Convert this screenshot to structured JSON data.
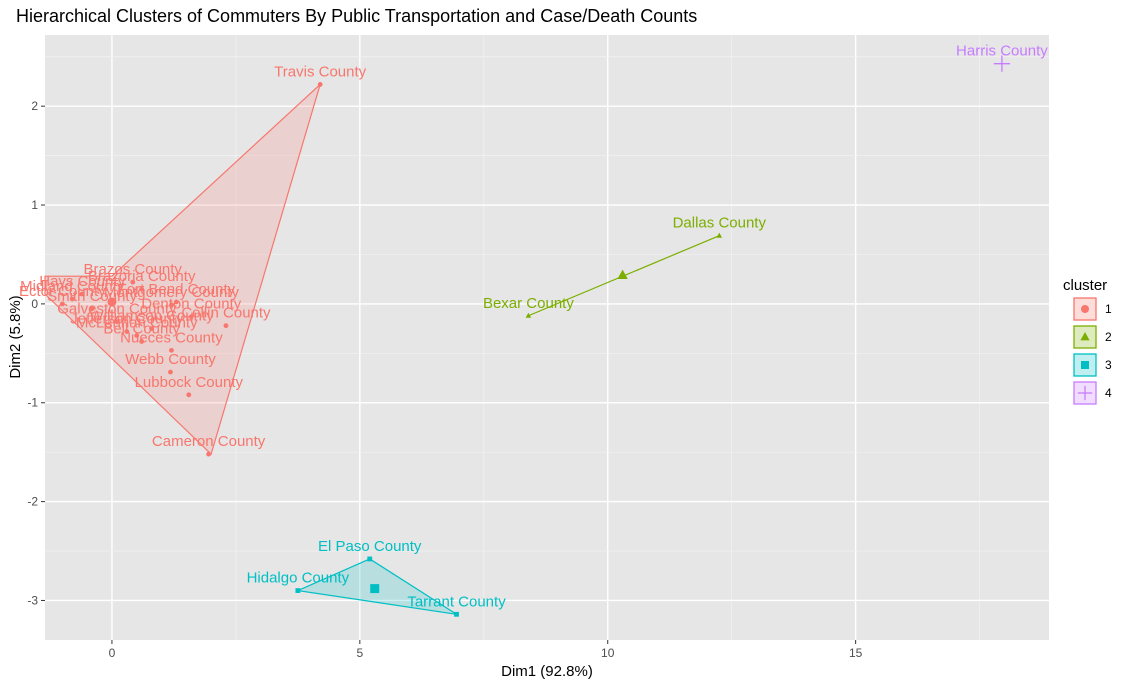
{
  "chart_data": {
    "type": "scatter",
    "title": "Hierarchical Clusters of Commuters By Public Transportation and Case/Death Counts",
    "xlabel": "Dim1 (92.8%)",
    "ylabel": "Dim2 (5.8%)",
    "xlim": [
      -1.35,
      18.9
    ],
    "ylim": [
      -3.4,
      2.72
    ],
    "xticks": [
      0,
      5,
      10,
      15
    ],
    "yticks": [
      -3,
      -2,
      -1,
      0,
      1,
      2
    ],
    "grid": true,
    "legend": {
      "title": "cluster",
      "position": "right",
      "entries": [
        "1",
        "2",
        "3",
        "4"
      ]
    },
    "colors": {
      "1": "#F8766D",
      "2": "#7CAE00",
      "3": "#00BFC4",
      "4": "#C77CFF"
    },
    "clusters": [
      {
        "name": "1",
        "color": "#F8766D",
        "shape": "circle",
        "centroid": [
          0,
          0.02
        ],
        "hull": [
          [
            4.2,
            2.22
          ],
          [
            2.0,
            -1.52
          ],
          [
            -1.35,
            0.1
          ],
          [
            -1.35,
            0.28
          ],
          [
            0,
            0.28
          ]
        ],
        "points": [
          {
            "label": "Travis County",
            "x": 4.2,
            "y": 2.22
          },
          {
            "label": "Cameron County",
            "x": 1.95,
            "y": -1.52
          },
          {
            "label": "Lubbock County",
            "x": 1.55,
            "y": -0.92
          },
          {
            "label": "Webb County",
            "x": 1.18,
            "y": -0.69
          },
          {
            "label": "Brazos County",
            "x": 0.42,
            "y": 0.22
          },
          {
            "label": "Fort Bend County",
            "x": 1.3,
            "y": 0.02
          },
          {
            "label": "Montgomery County",
            "x": 1.2,
            "y": -0.01
          },
          {
            "label": "Collin County",
            "x": 2.3,
            "y": -0.22
          },
          {
            "label": "Denton County",
            "x": 1.6,
            "y": -0.13
          },
          {
            "label": "McLennan County",
            "x": 0.5,
            "y": -0.32
          },
          {
            "label": "Nueces County",
            "x": 1.2,
            "y": -0.47
          },
          {
            "label": "Galveston County",
            "x": 0.1,
            "y": -0.18
          },
          {
            "label": "Jefferson County",
            "x": 0.3,
            "y": -0.28
          },
          {
            "label": "Bell County",
            "x": 0.6,
            "y": -0.38
          },
          {
            "label": "Williamson County",
            "x": 0.8,
            "y": -0.25
          },
          {
            "label": "Hays County",
            "x": -0.6,
            "y": 0.1
          },
          {
            "label": "Midland County",
            "x": -0.8,
            "y": 0.05
          },
          {
            "label": "Ector County",
            "x": -1.0,
            "y": 0.0
          },
          {
            "label": "Smith County",
            "x": -0.4,
            "y": -0.05
          },
          {
            "label": "Brazoria County",
            "x": 0.6,
            "y": 0.15
          }
        ]
      },
      {
        "name": "2",
        "color": "#7CAE00",
        "shape": "triangle",
        "centroid": [
          10.3,
          0.29
        ],
        "hull": [
          [
            8.4,
            -0.12
          ],
          [
            12.25,
            0.69
          ]
        ],
        "points": [
          {
            "label": "Dallas County",
            "x": 12.25,
            "y": 0.69
          },
          {
            "label": "Bexar County",
            "x": 8.4,
            "y": -0.12
          }
        ]
      },
      {
        "name": "3",
        "color": "#00BFC4",
        "shape": "square",
        "centroid": [
          5.3,
          -2.88
        ],
        "hull": [
          [
            5.2,
            -2.58
          ],
          [
            3.75,
            -2.9
          ],
          [
            6.95,
            -3.14
          ]
        ],
        "points": [
          {
            "label": "El Paso County",
            "x": 5.2,
            "y": -2.58
          },
          {
            "label": "Hidalgo County",
            "x": 3.75,
            "y": -2.9
          },
          {
            "label": "Tarrant County",
            "x": 6.95,
            "y": -3.14
          }
        ]
      },
      {
        "name": "4",
        "color": "#C77CFF",
        "shape": "plus",
        "centroid": [
          17.95,
          2.43
        ],
        "hull": [],
        "points": [
          {
            "label": "Harris County",
            "x": 17.95,
            "y": 2.43
          }
        ]
      }
    ]
  }
}
